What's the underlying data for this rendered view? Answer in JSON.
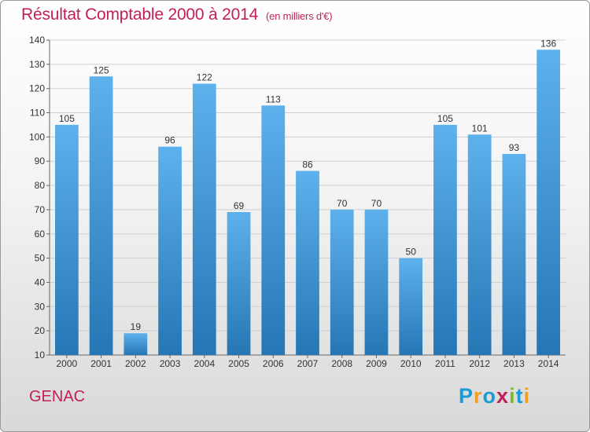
{
  "header": {
    "title": "Résultat Comptable 2000 à 2014",
    "subtitle": "(en milliers d'€)"
  },
  "footer": {
    "commune": "GENAC",
    "brand": {
      "text": "Proxiti",
      "letters": [
        {
          "char": "P",
          "color": "#1a9ad6"
        },
        {
          "char": "r",
          "color": "#f0a01e"
        },
        {
          "char": "o",
          "color": "#1a9ad6"
        },
        {
          "char": "x",
          "color": "#c41e5a"
        },
        {
          "char": "i",
          "color": "#7dbb2a"
        },
        {
          "char": "t",
          "color": "#1a9ad6"
        },
        {
          "char": "i",
          "color": "#f0a01e"
        }
      ]
    }
  },
  "colors": {
    "bar_top": "#5db1ec",
    "bar_bottom": "#2676b5",
    "title": "#c41e5a",
    "grid": "#cfcfcf"
  },
  "chart_data": {
    "type": "bar",
    "categories": [
      "2000",
      "2001",
      "2002",
      "2003",
      "2004",
      "2005",
      "2006",
      "2007",
      "2008",
      "2009",
      "2010",
      "2011",
      "2012",
      "2013",
      "2014"
    ],
    "values": [
      105,
      125,
      19,
      96,
      122,
      69,
      113,
      86,
      70,
      70,
      50,
      105,
      101,
      93,
      136
    ],
    "ylim": [
      10,
      140
    ],
    "yticks": [
      10,
      20,
      30,
      40,
      50,
      60,
      70,
      80,
      90,
      100,
      110,
      120,
      130,
      140
    ],
    "grid": true,
    "legend": "none"
  }
}
